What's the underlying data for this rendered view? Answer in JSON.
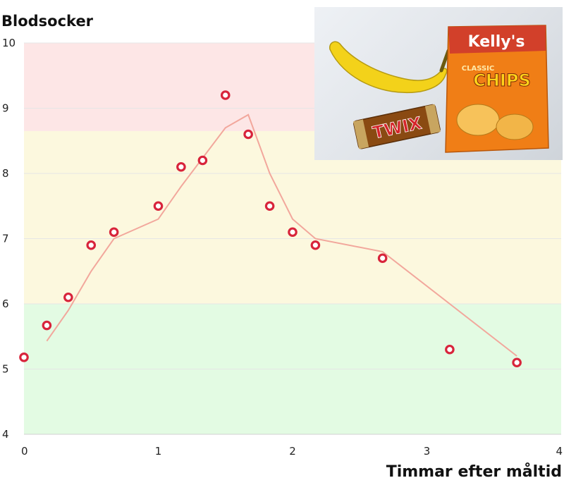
{
  "chart_data": {
    "type": "scatter",
    "ylabel": "Blodsocker",
    "xlabel": "Timmar efter måltid",
    "xlim": [
      0,
      4
    ],
    "ylim": [
      4,
      10
    ],
    "x_ticks": [
      "0",
      "1",
      "2",
      "3",
      "4"
    ],
    "y_ticks": [
      "4",
      "5",
      "6",
      "7",
      "8",
      "9",
      "10"
    ],
    "grid": true,
    "bands": [
      {
        "from": 4,
        "to": 6,
        "color": "#e3fbe3"
      },
      {
        "from": 6,
        "to": 8.65,
        "color": "#fcf8de"
      },
      {
        "from": 8.65,
        "to": 10,
        "color": "#fde6e6"
      }
    ],
    "points": [
      {
        "x": 0.0,
        "y": 5.18
      },
      {
        "x": 0.17,
        "y": 5.67
      },
      {
        "x": 0.33,
        "y": 6.1
      },
      {
        "x": 0.5,
        "y": 6.9
      },
      {
        "x": 0.67,
        "y": 7.1
      },
      {
        "x": 1.0,
        "y": 7.5
      },
      {
        "x": 1.17,
        "y": 8.1
      },
      {
        "x": 1.33,
        "y": 8.2
      },
      {
        "x": 1.5,
        "y": 9.2
      },
      {
        "x": 1.67,
        "y": 8.6
      },
      {
        "x": 1.83,
        "y": 7.5
      },
      {
        "x": 2.0,
        "y": 7.1
      },
      {
        "x": 2.17,
        "y": 6.9
      },
      {
        "x": 2.67,
        "y": 6.7
      },
      {
        "x": 3.17,
        "y": 5.3
      },
      {
        "x": 3.67,
        "y": 5.1
      }
    ],
    "trend_line": [
      {
        "x": 0.17,
        "y": 5.43
      },
      {
        "x": 0.33,
        "y": 5.9
      },
      {
        "x": 0.5,
        "y": 6.5
      },
      {
        "x": 0.67,
        "y": 7.0
      },
      {
        "x": 1.0,
        "y": 7.3
      },
      {
        "x": 1.17,
        "y": 7.8
      },
      {
        "x": 1.5,
        "y": 8.7
      },
      {
        "x": 1.67,
        "y": 8.9
      },
      {
        "x": 1.83,
        "y": 8.0
      },
      {
        "x": 2.0,
        "y": 7.3
      },
      {
        "x": 2.17,
        "y": 7.0
      },
      {
        "x": 2.67,
        "y": 6.8
      },
      {
        "x": 3.67,
        "y": 5.2
      }
    ],
    "colors": {
      "marker": "#d8243b",
      "line": "#f2a79c",
      "grid": "#e6e6e6"
    }
  },
  "photo": {
    "brand_text": "Kelly's",
    "chips_text": "CHIPS",
    "candy_text": "TWIX",
    "classic_text": "CLASSIC"
  }
}
